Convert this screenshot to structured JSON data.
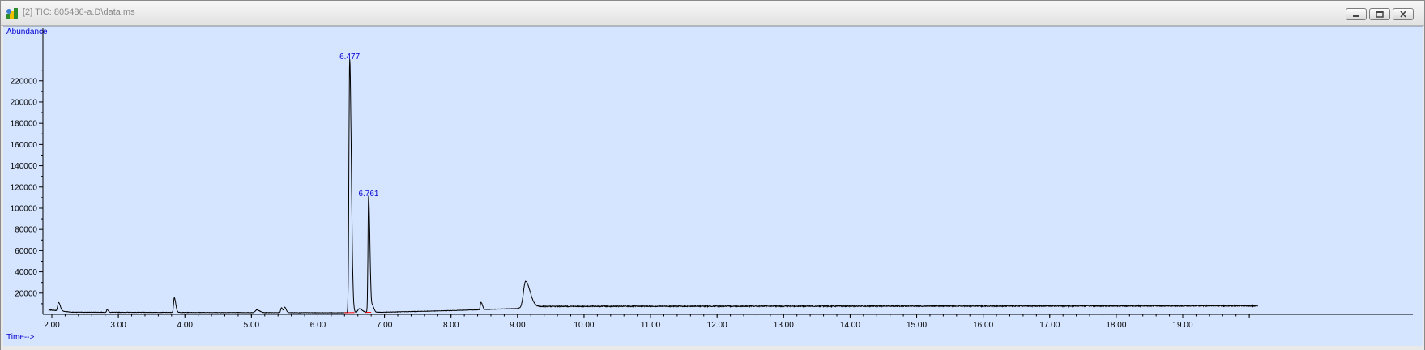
{
  "window": {
    "title": "[2] TIC: 805486-a.D\\data.ms",
    "buttons": [
      "minimize-button",
      "restore-button",
      "close-button"
    ]
  },
  "chart_data": {
    "type": "line",
    "title": "",
    "xlabel": "Time-->",
    "ylabel": "Abundance",
    "xlim": [
      1.9,
      20.1
    ],
    "ylim": [
      0,
      245000
    ],
    "x_ticks": [
      2.0,
      3.0,
      4.0,
      5.0,
      6.0,
      7.0,
      8.0,
      9.0,
      10.0,
      11.0,
      12.0,
      13.0,
      14.0,
      15.0,
      16.0,
      17.0,
      18.0,
      19.0
    ],
    "x_tick_labels": [
      "2.00",
      "3.00",
      "4.00",
      "5.00",
      "6.00",
      "7.00",
      "8.00",
      "9.00",
      "10.00",
      "11.00",
      "12.00",
      "13.00",
      "14.00",
      "15.00",
      "16.00",
      "17.00",
      "18.00",
      "19.00"
    ],
    "y_ticks": [
      20000,
      40000,
      60000,
      80000,
      100000,
      120000,
      140000,
      160000,
      180000,
      200000,
      220000
    ],
    "y_tick_labels": [
      "20000",
      "40000",
      "60000",
      "80000",
      "100000",
      "120000",
      "140000",
      "160000",
      "180000",
      "200000",
      "220000"
    ],
    "peaks": [
      {
        "rt": 2.1,
        "height": 8000,
        "width": 0.012
      },
      {
        "rt": 2.83,
        "height": 2500,
        "width": 0.008
      },
      {
        "rt": 3.84,
        "height": 14000,
        "width": 0.01
      },
      {
        "rt": 5.08,
        "height": 2500,
        "width": 0.02
      },
      {
        "rt": 5.45,
        "height": 4500,
        "width": 0.01
      },
      {
        "rt": 5.5,
        "height": 5000,
        "width": 0.01
      },
      {
        "rt": 6.477,
        "height": 239000,
        "width": 0.011
      },
      {
        "rt": 6.62,
        "height": 3500,
        "width": 0.02
      },
      {
        "rt": 6.761,
        "height": 110000,
        "width": 0.009
      },
      {
        "rt": 6.82,
        "height": 6000,
        "width": 0.01
      },
      {
        "rt": 8.45,
        "height": 7000,
        "width": 0.01
      },
      {
        "rt": 9.12,
        "height": 24000,
        "width": 0.03
      }
    ],
    "baseline": [
      {
        "x": 2.0,
        "y": 4000
      },
      {
        "x": 2.3,
        "y": 2000
      },
      {
        "x": 6.3,
        "y": 1500
      },
      {
        "x": 7.0,
        "y": 2000
      },
      {
        "x": 8.0,
        "y": 3500
      },
      {
        "x": 9.0,
        "y": 5500
      },
      {
        "x": 9.15,
        "y": 7500
      },
      {
        "x": 20.0,
        "y": 8000
      }
    ],
    "peak_labels": [
      {
        "text": "6.477",
        "x": 6.477,
        "y": 239000
      },
      {
        "text": "6.761",
        "x": 6.761,
        "y": 110000
      }
    ],
    "colors": {
      "trace": "#000000",
      "labels": "#0000d0",
      "background": "#d6e5ff",
      "integration": "#ff0000"
    }
  }
}
